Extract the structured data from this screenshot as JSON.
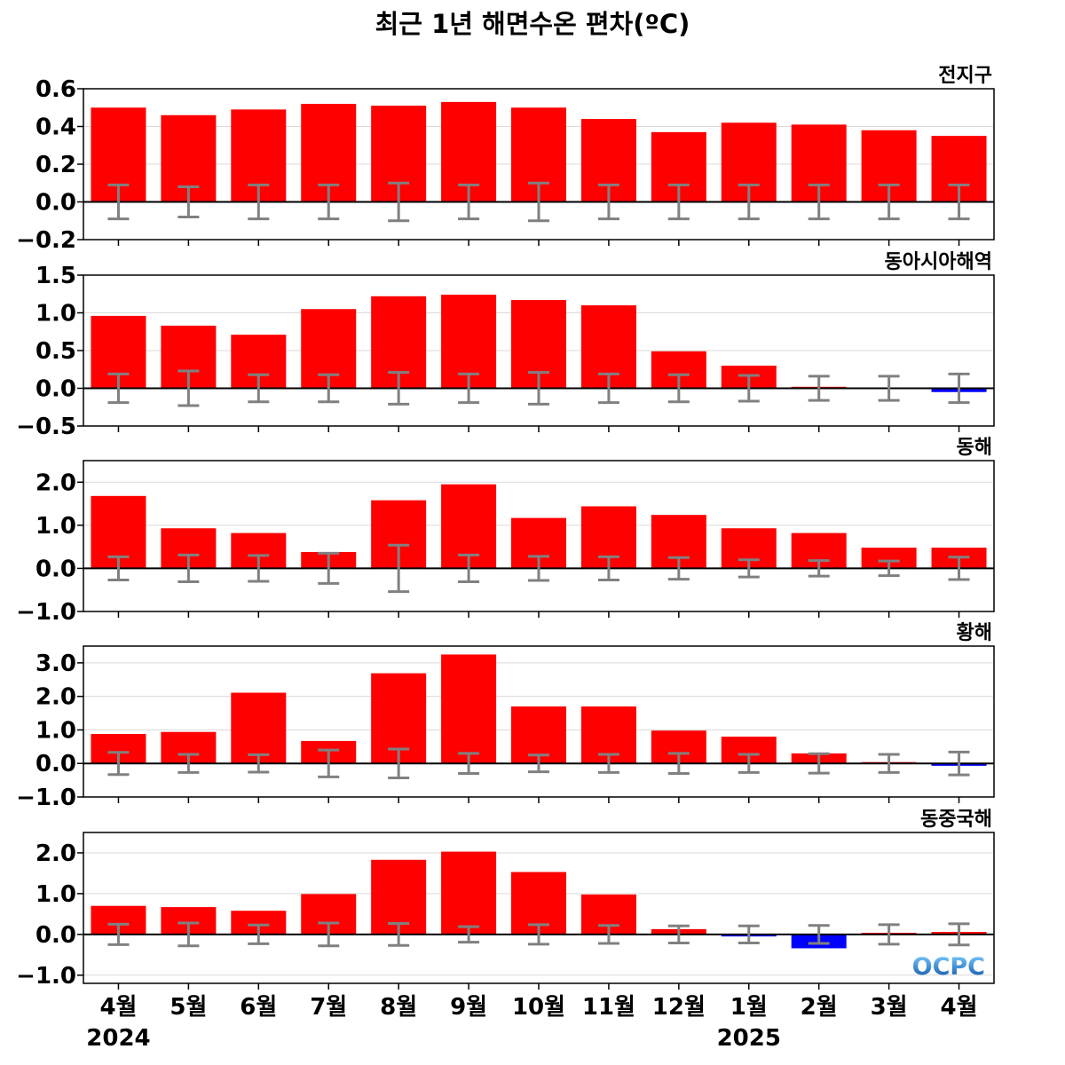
{
  "title": "최근 1년 해면수온 편차(ºC)",
  "logo": "OCPC",
  "colors": {
    "positive": "#ff0000",
    "negative": "#0000ff",
    "errorbar": "#808080",
    "grid": "#d9d9d9",
    "zero_line": "#000000"
  },
  "chart_data": {
    "type": "bar",
    "categories": [
      "4월",
      "5월",
      "6월",
      "7월",
      "8월",
      "9월",
      "10월",
      "11월",
      "12월",
      "1월",
      "2월",
      "3월",
      "4월"
    ],
    "years": [
      {
        "label": "2024",
        "category_index": 0
      },
      {
        "label": "2025",
        "category_index": 9
      }
    ],
    "panels": [
      {
        "name": "전지구",
        "ylim": [
          -0.2,
          0.6
        ],
        "yticks": [
          -0.2,
          0.0,
          0.2,
          0.4,
          0.6
        ],
        "tick_labels": [
          "−0.2",
          "0.0",
          "0.2",
          "0.4",
          "0.6"
        ],
        "values": [
          0.5,
          0.46,
          0.49,
          0.52,
          0.51,
          0.53,
          0.5,
          0.44,
          0.37,
          0.42,
          0.41,
          0.38,
          0.35
        ],
        "error": [
          0.09,
          0.08,
          0.09,
          0.09,
          0.1,
          0.09,
          0.1,
          0.09,
          0.09,
          0.09,
          0.09,
          0.09,
          0.09
        ]
      },
      {
        "name": "동아시아해역",
        "ylim": [
          -0.5,
          1.5
        ],
        "yticks": [
          -0.5,
          0.0,
          0.5,
          1.0,
          1.5
        ],
        "tick_labels": [
          "−0.5",
          "0.0",
          "0.5",
          "1.0",
          "1.5"
        ],
        "values": [
          0.96,
          0.83,
          0.71,
          1.05,
          1.22,
          1.24,
          1.17,
          1.1,
          0.49,
          0.3,
          0.02,
          0.01,
          -0.05
        ],
        "error": [
          0.19,
          0.23,
          0.18,
          0.18,
          0.21,
          0.19,
          0.21,
          0.19,
          0.18,
          0.17,
          0.16,
          0.16,
          0.19
        ]
      },
      {
        "name": "동해",
        "ylim": [
          -1.0,
          2.5
        ],
        "yticks": [
          -1.0,
          0.0,
          1.0,
          2.0
        ],
        "tick_labels": [
          "−1.0",
          "0.0",
          "1.0",
          "2.0"
        ],
        "values": [
          1.68,
          0.93,
          0.82,
          0.38,
          1.58,
          1.95,
          1.17,
          1.44,
          1.24,
          0.93,
          0.82,
          0.48,
          0.48
        ],
        "error": [
          0.27,
          0.31,
          0.3,
          0.35,
          0.54,
          0.31,
          0.28,
          0.27,
          0.25,
          0.2,
          0.18,
          0.17,
          0.26
        ]
      },
      {
        "name": "황해",
        "ylim": [
          -1.0,
          3.5
        ],
        "yticks": [
          -1.0,
          0.0,
          1.0,
          2.0,
          3.0
        ],
        "tick_labels": [
          "−1.0",
          "0.0",
          "1.0",
          "2.0",
          "3.0"
        ],
        "values": [
          0.88,
          0.94,
          2.11,
          0.67,
          2.69,
          3.25,
          1.7,
          1.7,
          0.98,
          0.8,
          0.3,
          0.04,
          -0.07
        ],
        "error": [
          0.33,
          0.27,
          0.26,
          0.4,
          0.43,
          0.3,
          0.25,
          0.27,
          0.3,
          0.27,
          0.29,
          0.27,
          0.34
        ]
      },
      {
        "name": "동중국해",
        "ylim": [
          -1.2,
          2.5
        ],
        "yticks": [
          -1.0,
          0.0,
          1.0,
          2.0
        ],
        "tick_labels": [
          "−1.0",
          "0.0",
          "1.0",
          "2.0"
        ],
        "values": [
          0.7,
          0.67,
          0.58,
          0.99,
          1.83,
          2.03,
          1.53,
          0.98,
          0.13,
          -0.05,
          -0.34,
          0.04,
          0.06
        ],
        "error": [
          0.25,
          0.28,
          0.23,
          0.28,
          0.27,
          0.19,
          0.24,
          0.22,
          0.21,
          0.21,
          0.22,
          0.24,
          0.26
        ]
      }
    ]
  }
}
